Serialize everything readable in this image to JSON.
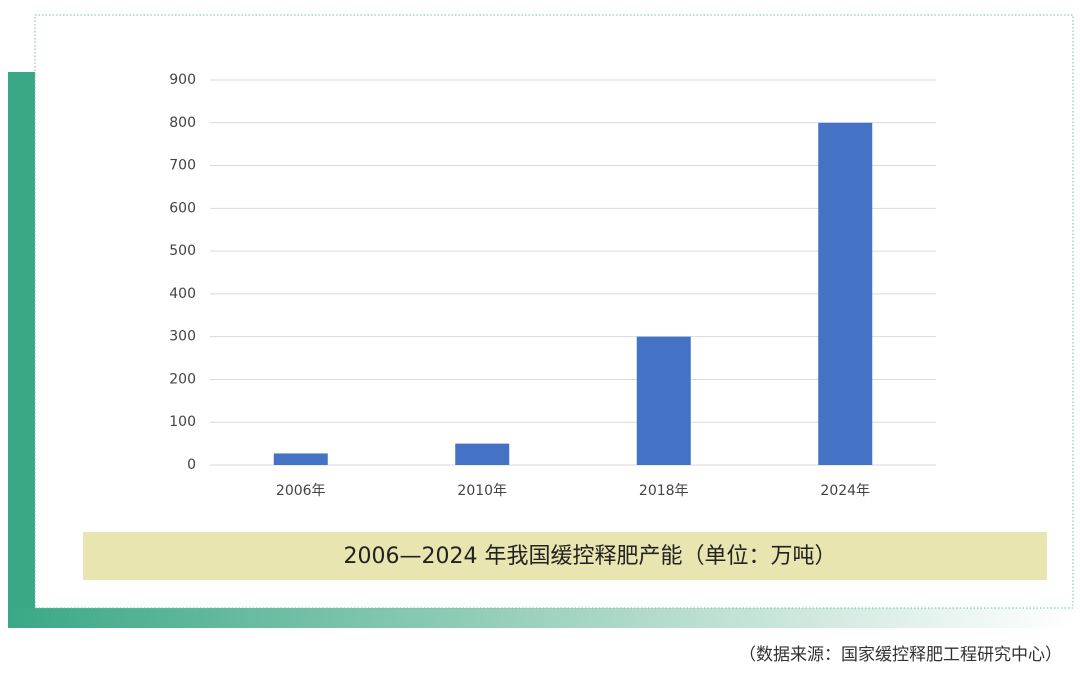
{
  "chart_data": {
    "type": "bar",
    "title": "2006—2024 年我国缓控释肥产能（单位：万吨）",
    "source": "（数据来源：国家缓控释肥工程研究中心）",
    "categories": [
      "2006年",
      "2010年",
      "2018年",
      "2024年"
    ],
    "values": [
      27,
      50,
      300,
      800
    ],
    "color": "#4472c4",
    "ylim": [
      0,
      900
    ],
    "yticks": [
      0,
      100,
      200,
      300,
      400,
      500,
      600,
      700,
      800,
      900
    ],
    "grid": true
  }
}
